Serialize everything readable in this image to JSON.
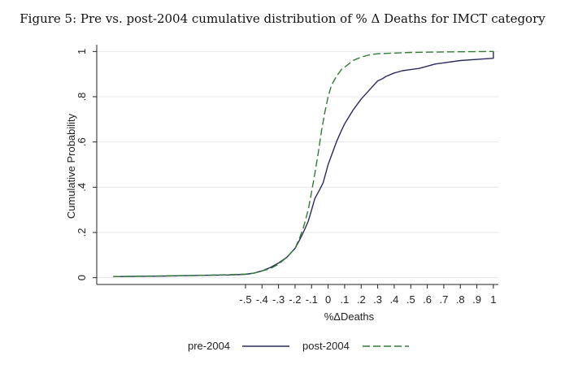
{
  "figure": {
    "caption": "Figure 5: Pre vs. post-2004 cumulative distribution of % Δ Deaths for IMCT category"
  },
  "chart_data": {
    "type": "line",
    "title": "Figure 5: Pre vs. post-2004 cumulative distribution of % Δ Deaths for IMCT category",
    "xlabel": "%ΔDeaths",
    "ylabel": "Cumulative Probability",
    "xlim": [
      -1.4,
      1.03
    ],
    "ylim": [
      -0.03,
      1.03
    ],
    "x_ticks": [
      -0.5,
      -0.4,
      -0.3,
      -0.2,
      -0.1,
      0,
      0.1,
      0.2,
      0.3,
      0.4,
      0.5,
      0.6,
      0.7,
      0.8,
      0.9,
      1
    ],
    "x_tick_labels": [
      "-.5",
      "-.4",
      "-.3",
      "-.2",
      "-.1",
      "0",
      ".1",
      ".2",
      ".3",
      ".4",
      ".5",
      ".6",
      ".7",
      ".8",
      ".9",
      "1"
    ],
    "y_ticks": [
      0,
      0.2,
      0.4,
      0.6,
      0.8,
      1
    ],
    "y_tick_labels": [
      "0",
      ".2",
      ".4",
      ".6",
      ".8",
      "1"
    ],
    "grid": "horizontal",
    "legend_position": "bottom",
    "series": [
      {
        "name": "pre-2004",
        "color": "#2b2a5e",
        "style": "solid",
        "x": [
          -1.3,
          -1.0,
          -0.8,
          -0.6,
          -0.5,
          -0.45,
          -0.4,
          -0.35,
          -0.3,
          -0.25,
          -0.2,
          -0.17,
          -0.15,
          -0.12,
          -0.1,
          -0.08,
          -0.05,
          -0.03,
          0,
          0.02,
          0.05,
          0.08,
          0.1,
          0.15,
          0.2,
          0.25,
          0.3,
          0.33,
          0.35,
          0.4,
          0.45,
          0.5,
          0.55,
          0.6,
          0.65,
          0.7,
          0.8,
          0.9,
          1,
          1
        ],
        "y": [
          0.005,
          0.007,
          0.01,
          0.012,
          0.015,
          0.02,
          0.03,
          0.045,
          0.065,
          0.09,
          0.13,
          0.17,
          0.2,
          0.25,
          0.3,
          0.35,
          0.39,
          0.42,
          0.5,
          0.54,
          0.6,
          0.65,
          0.68,
          0.74,
          0.79,
          0.83,
          0.87,
          0.88,
          0.89,
          0.905,
          0.915,
          0.92,
          0.925,
          0.935,
          0.945,
          0.95,
          0.96,
          0.965,
          0.97,
          1.0
        ]
      },
      {
        "name": "post-2004",
        "color": "#2e7d32",
        "style": "dashed",
        "x": [
          -1.3,
          -1.0,
          -0.8,
          -0.6,
          -0.5,
          -0.45,
          -0.4,
          -0.35,
          -0.3,
          -0.25,
          -0.2,
          -0.17,
          -0.15,
          -0.12,
          -0.1,
          -0.08,
          -0.06,
          -0.04,
          -0.02,
          0,
          0.02,
          0.05,
          0.08,
          0.1,
          0.15,
          0.2,
          0.25,
          0.3,
          0.4,
          0.5,
          0.7,
          1
        ],
        "y": [
          0.005,
          0.008,
          0.01,
          0.013,
          0.016,
          0.02,
          0.03,
          0.04,
          0.06,
          0.09,
          0.13,
          0.18,
          0.22,
          0.3,
          0.38,
          0.46,
          0.55,
          0.65,
          0.73,
          0.8,
          0.85,
          0.89,
          0.92,
          0.93,
          0.96,
          0.975,
          0.985,
          0.99,
          0.993,
          0.996,
          0.998,
          1.0
        ]
      }
    ]
  }
}
